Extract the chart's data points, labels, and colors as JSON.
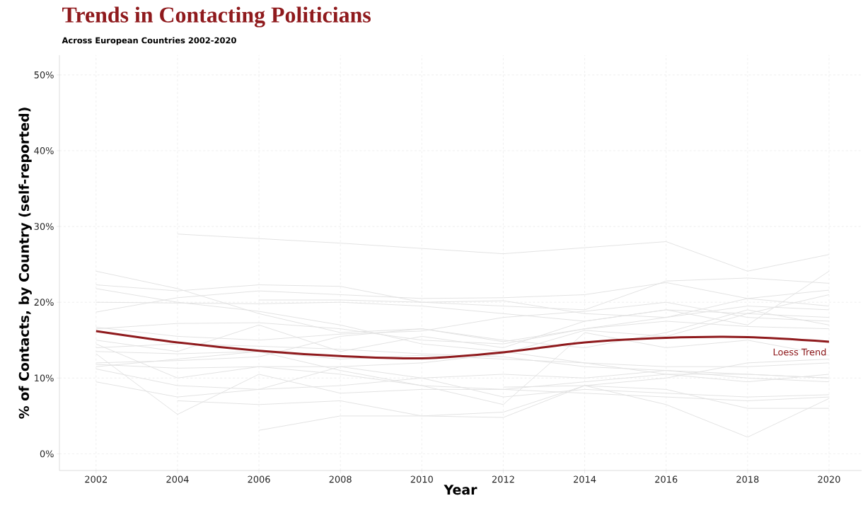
{
  "chart_data": {
    "type": "line",
    "title": "Trends in Contacting Politicians",
    "subtitle": "Across European Countries 2002-2020",
    "xlabel": "Year",
    "ylabel": "% of Contacts, by Country (self-reported)",
    "x": [
      2002,
      2004,
      2006,
      2008,
      2010,
      2012,
      2014,
      2016,
      2018,
      2020
    ],
    "xlim": [
      2001.1,
      2020.8
    ],
    "xticks": [
      2002,
      2004,
      2006,
      2008,
      2010,
      2012,
      2014,
      2016,
      2018,
      2020
    ],
    "ylim": [
      -2.2,
      52.6
    ],
    "yticks": [
      {
        "value": 0,
        "label": "0%"
      },
      {
        "value": 10,
        "label": "10%"
      },
      {
        "value": 20,
        "label": "20%"
      },
      {
        "value": 30,
        "label": "30%"
      },
      {
        "value": 40,
        "label": "40%"
      },
      {
        "value": 50,
        "label": "50%"
      }
    ],
    "grid": true,
    "series": [
      {
        "color": "#e3e3e3",
        "values": [
          null,
          29.0,
          28.4,
          27.8,
          27.1,
          26.4,
          27.2,
          28.0,
          24.1,
          26.3
        ]
      },
      {
        "color": "#e3e3e3",
        "values": [
          24.1,
          21.8,
          18.5,
          16.0,
          16.5,
          15.0,
          14.0,
          16.0,
          19.0,
          17.0
        ]
      },
      {
        "color": "#e3e3e3",
        "values": [
          22.3,
          21.5,
          22.3,
          22.1,
          20.0,
          19.5,
          19.0,
          22.8,
          23.2,
          22.5
        ]
      },
      {
        "color": "#e3e3e3",
        "values": [
          21.8,
          20.0,
          18.8,
          17.0,
          14.5,
          13.5,
          12.0,
          10.5,
          10.5,
          10.0
        ]
      },
      {
        "color": "#e3e3e3",
        "values": [
          18.7,
          20.6,
          21.5,
          21.0,
          20.5,
          20.6,
          21.0,
          22.6,
          20.5,
          21.6
        ]
      },
      {
        "color": "#e3e3e3",
        "values": [
          20.0,
          19.9,
          19.8,
          20.0,
          19.5,
          18.5,
          17.5,
          19.0,
          18.5,
          18.0
        ]
      },
      {
        "color": "#e3e3e3",
        "values": [
          null,
          null,
          20.3,
          20.3,
          20.0,
          20.2,
          18.5,
          18.0,
          19.5,
          19.0
        ]
      },
      {
        "color": "#e3e3e3",
        "values": [
          16.7,
          15.5,
          15.0,
          15.8,
          16.2,
          18.0,
          18.8,
          20.0,
          18.0,
          17.5
        ]
      },
      {
        "color": "#e3e3e3",
        "values": [
          16.5,
          17.2,
          17.3,
          16.5,
          15.0,
          14.5,
          16.5,
          17.5,
          16.8,
          16.5
        ]
      },
      {
        "color": "#e3e3e3",
        "values": [
          15.0,
          13.5,
          17.0,
          13.5,
          15.5,
          14.0,
          17.5,
          19.0,
          17.0,
          24.1
        ]
      },
      {
        "color": "#e3e3e3",
        "values": [
          14.0,
          14.5,
          14.2,
          13.8,
          13.2,
          12.8,
          11.5,
          11.0,
          10.5,
          10.0
        ]
      },
      {
        "color": "#e3e3e3",
        "values": [
          13.5,
          13.2,
          13.5,
          12.5,
          13.0,
          12.5,
          12.0,
          11.5,
          11.5,
          12.0
        ]
      },
      {
        "color": "#e3e3e3",
        "values": [
          12.0,
          12.3,
          12.8,
          15.5,
          16.5,
          14.8,
          16.5,
          18.0,
          20.5,
          19.5
        ]
      },
      {
        "color": "#e3e3e3",
        "values": [
          11.8,
          11.3,
          11.5,
          11.5,
          12.0,
          13.2,
          16.3,
          15.5,
          18.5,
          21.0
        ]
      },
      {
        "color": "#e3e3e3",
        "values": [
          11.5,
          12.5,
          13.5,
          11.0,
          9.0,
          8.5,
          9.5,
          10.5,
          9.5,
          10.5
        ]
      },
      {
        "color": "#e3e3e3",
        "values": [
          11.2,
          9.0,
          8.5,
          11.5,
          10.0,
          7.5,
          8.5,
          8.0,
          7.5,
          7.8
        ]
      },
      {
        "color": "#e3e3e3",
        "values": [
          14.5,
          10.0,
          11.5,
          10.5,
          9.0,
          6.5,
          16.0,
          14.0,
          15.0,
          13.0
        ]
      },
      {
        "color": "#e3e3e3",
        "values": [
          9.5,
          7.5,
          8.5,
          9.0,
          10.0,
          10.5,
          10.0,
          11.0,
          10.0,
          9.5
        ]
      },
      {
        "color": "#e3e3e3",
        "values": [
          13.2,
          5.2,
          10.5,
          8.0,
          8.5,
          8.5,
          8.0,
          7.5,
          7.0,
          7.5
        ]
      },
      {
        "color": "#e3e3e3",
        "values": [
          null,
          7.0,
          6.5,
          7.0,
          5.0,
          4.8,
          9.0,
          6.5,
          2.2,
          7.3
        ]
      },
      {
        "color": "#e3e3e3",
        "values": [
          null,
          null,
          3.1,
          5.0,
          5.0,
          5.5,
          9.0,
          8.5,
          6.0,
          6.0
        ]
      },
      {
        "color": "#e3e3e3",
        "values": [
          null,
          null,
          null,
          null,
          null,
          8.8,
          9.0,
          10.0,
          12.0,
          12.5
        ]
      },
      {
        "name": "Loess Trend",
        "color": "#8f1a1d",
        "values": [
          16.2,
          14.7,
          13.6,
          12.9,
          12.6,
          13.4,
          14.7,
          15.3,
          15.4,
          14.8
        ]
      }
    ]
  }
}
